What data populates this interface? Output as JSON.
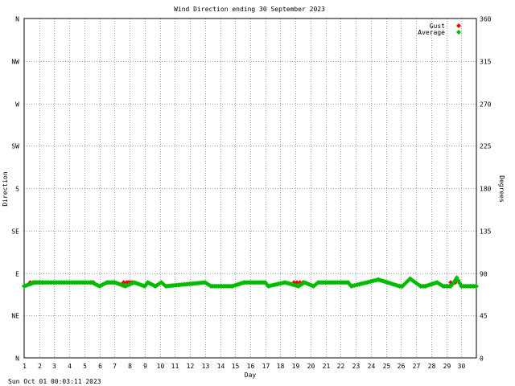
{
  "chart_data": {
    "type": "scatter",
    "title": "Wind Direction ending 30 September 2023",
    "xlabel": "Day",
    "ylabel_left": "Direction",
    "ylabel_right": "Degrees",
    "footer": "Sun Oct 01 00:03:11 2023",
    "xlim": [
      1,
      31
    ],
    "ylim": [
      0,
      360
    ],
    "grid": true,
    "legend_position": "top-right",
    "x_ticks": [
      {
        "value": 1,
        "label": "1"
      },
      {
        "value": 2,
        "label": "2"
      },
      {
        "value": 3,
        "label": "3"
      },
      {
        "value": 4,
        "label": "4"
      },
      {
        "value": 5,
        "label": "5"
      },
      {
        "value": 6,
        "label": "6"
      },
      {
        "value": 7,
        "label": "7"
      },
      {
        "value": 8,
        "label": "8"
      },
      {
        "value": 9,
        "label": "9"
      },
      {
        "value": 10,
        "label": "10"
      },
      {
        "value": 11,
        "label": "11"
      },
      {
        "value": 12,
        "label": "12"
      },
      {
        "value": 13,
        "label": "13"
      },
      {
        "value": 14,
        "label": "14"
      },
      {
        "value": 15,
        "label": "15"
      },
      {
        "value": 16,
        "label": "16"
      },
      {
        "value": 17,
        "label": "17"
      },
      {
        "value": 18,
        "label": "18"
      },
      {
        "value": 19,
        "label": "19"
      },
      {
        "value": 20,
        "label": "20"
      },
      {
        "value": 21,
        "label": "21"
      },
      {
        "value": 22,
        "label": "22"
      },
      {
        "value": 23,
        "label": "23"
      },
      {
        "value": 24,
        "label": "24"
      },
      {
        "value": 25,
        "label": "25"
      },
      {
        "value": 26,
        "label": "26"
      },
      {
        "value": 27,
        "label": "27"
      },
      {
        "value": 28,
        "label": "28"
      },
      {
        "value": 29,
        "label": "29"
      },
      {
        "value": 30,
        "label": "30"
      }
    ],
    "y_ticks_left": [
      {
        "value": 0,
        "label": "N"
      },
      {
        "value": 45,
        "label": "NE"
      },
      {
        "value": 90,
        "label": "E"
      },
      {
        "value": 135,
        "label": "SE"
      },
      {
        "value": 180,
        "label": "S"
      },
      {
        "value": 225,
        "label": "SW"
      },
      {
        "value": 270,
        "label": "W"
      },
      {
        "value": 315,
        "label": "NW"
      },
      {
        "value": 360,
        "label": "N"
      }
    ],
    "y_ticks_right": [
      {
        "value": 0,
        "label": "0"
      },
      {
        "value": 45,
        "label": "45"
      },
      {
        "value": 90,
        "label": "90"
      },
      {
        "value": 135,
        "label": "135"
      },
      {
        "value": 180,
        "label": "180"
      },
      {
        "value": 225,
        "label": "225"
      },
      {
        "value": 270,
        "label": "270"
      },
      {
        "value": 315,
        "label": "315"
      },
      {
        "value": 360,
        "label": "360"
      }
    ],
    "series": [
      {
        "name": "Gust",
        "color": "#ff0000",
        "x": [
          1.4,
          1.6,
          1.8,
          2.0,
          2.2,
          5.4,
          5.6,
          6.6,
          6.9,
          7.6,
          7.8,
          7.9,
          8.0,
          8.1,
          8.2,
          18.9,
          19.1,
          19.3,
          19.5,
          24.5,
          29.3,
          29.6
        ],
        "y": [
          80,
          80,
          80,
          80,
          80,
          80,
          80,
          80,
          80,
          80,
          80,
          80,
          80,
          80,
          80,
          80,
          80,
          80,
          80,
          83,
          80,
          80
        ]
      },
      {
        "name": "Average",
        "color": "#00bb00",
        "x": [
          1.0,
          1.7,
          2.0,
          2.3,
          5.5,
          6.0,
          6.5,
          7.0,
          7.7,
          8.3,
          9.0,
          9.2,
          9.7,
          10.1,
          10.4,
          13.0,
          13.4,
          14.8,
          15.6,
          16.0,
          17.0,
          17.2,
          18.3,
          19.2,
          19.6,
          20.2,
          20.5,
          21.0,
          22.5,
          22.7,
          24.5,
          25.9,
          26.1,
          26.6,
          27.3,
          27.6,
          28.4,
          28.8,
          29.3,
          29.5,
          29.7,
          30.0,
          31.0
        ],
        "y": [
          76,
          80,
          80,
          80,
          80,
          76,
          80,
          80,
          76,
          80,
          76,
          80,
          76,
          80,
          76,
          80,
          76,
          76,
          80,
          80,
          80,
          76,
          80,
          76,
          80,
          76,
          80,
          80,
          80,
          76,
          83,
          76,
          76,
          84,
          76,
          76,
          80,
          76,
          76,
          80,
          85,
          76,
          76
        ]
      }
    ]
  }
}
